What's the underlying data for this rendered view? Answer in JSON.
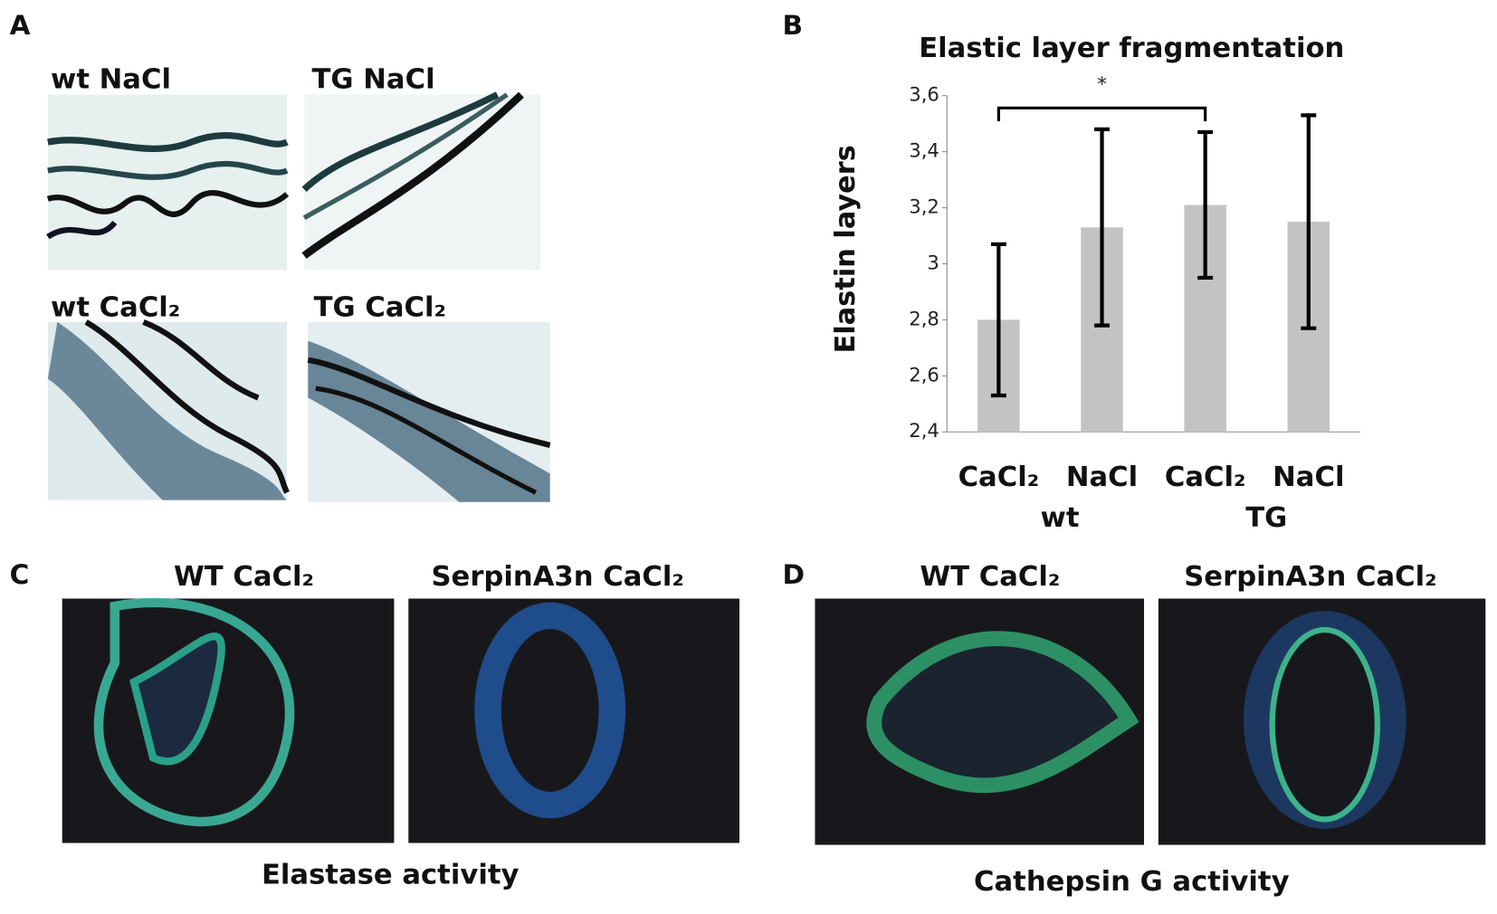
{
  "panels": {
    "a": "A",
    "b": "B",
    "c": "C",
    "d": "D"
  },
  "panel_a": {
    "captions": [
      "wt NaCl",
      "TG NaCl",
      "wt CaCl₂",
      "TG CaCl₂"
    ]
  },
  "panel_c": {
    "captions": [
      "WT CaCl₂",
      "SerpinA3n CaCl₂"
    ],
    "footer": "Elastase activity"
  },
  "panel_d": {
    "captions": [
      "WT CaCl₂",
      "SerpinA3n CaCl₂"
    ],
    "footer": "Cathepsin G activity"
  },
  "chart_data": {
    "type": "bar",
    "title": "Elastic layer fragmentation",
    "y_label": "Elastin layers",
    "categories": [
      "CaCl₂",
      "NaCl",
      "CaCl₂",
      "NaCl"
    ],
    "groups": [
      "wt",
      "TG"
    ],
    "values": [
      2.8,
      3.13,
      3.21,
      3.15
    ],
    "errors": [
      0.27,
      0.35,
      0.26,
      0.38
    ],
    "color": "#c3c3c3",
    "error_color": "#000000",
    "ylim": [
      2.4,
      3.6
    ],
    "yticks": [
      {
        "value": 2.4,
        "label": "2,4"
      },
      {
        "value": 2.6,
        "label": "2,6"
      },
      {
        "value": 2.8,
        "label": "2,8"
      },
      3,
      {
        "value": 3.2,
        "label": "3,2"
      },
      {
        "value": 3.4,
        "label": "3,4"
      },
      {
        "value": 3.6,
        "label": "3,6"
      }
    ],
    "significance": {
      "label": "*",
      "between": [
        0,
        2
      ]
    }
  }
}
